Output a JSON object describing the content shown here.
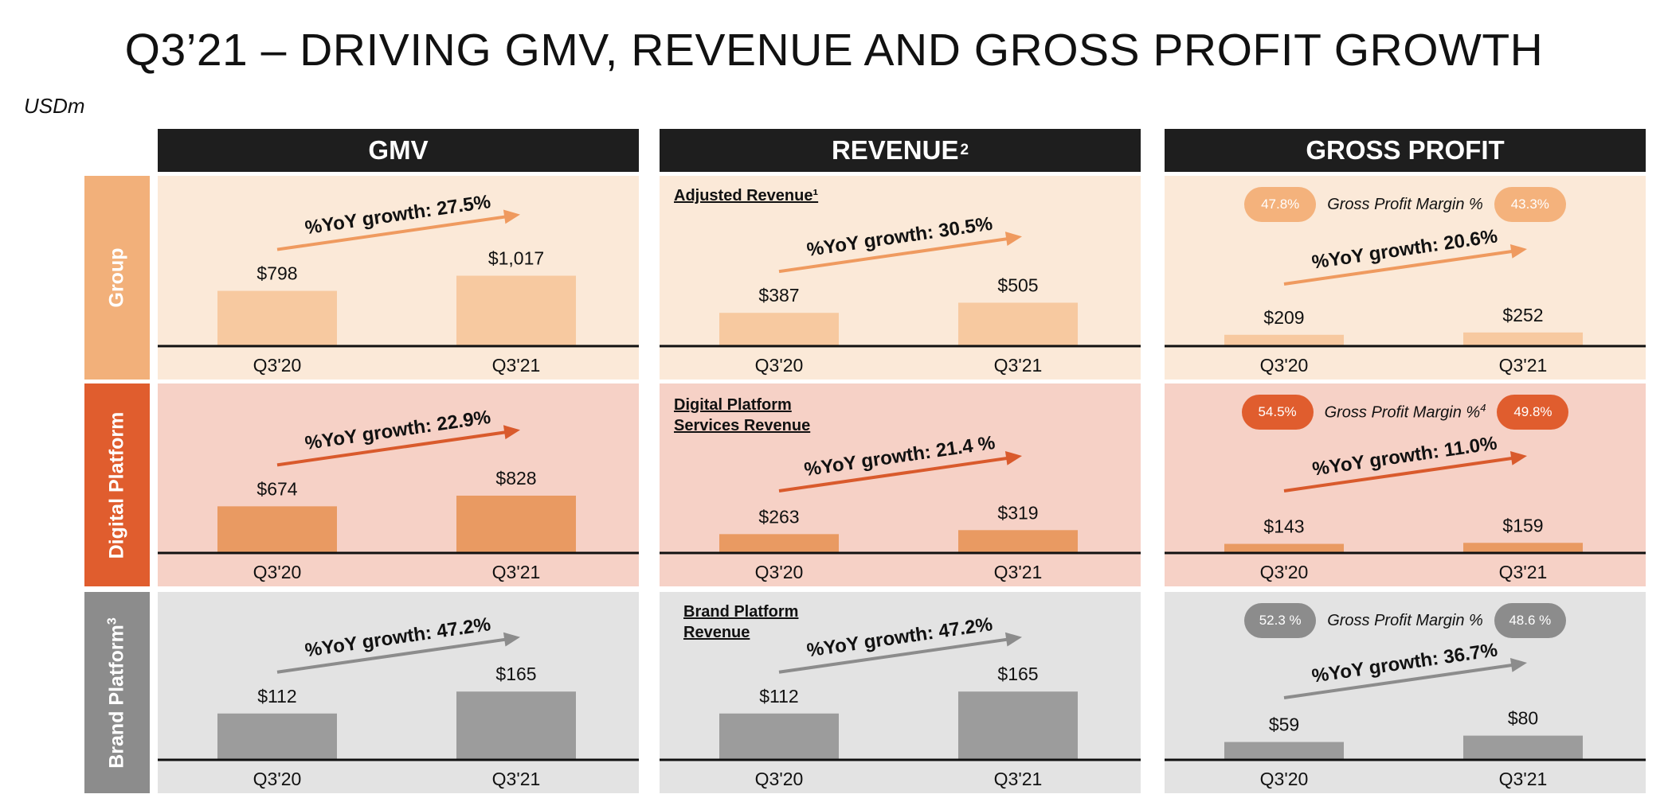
{
  "title": "Q3’21 – DRIVING GMV, REVENUE AND GROSS PROFIT GROWTH",
  "units": "USDm",
  "columns": [
    {
      "label": "GMV",
      "sup": ""
    },
    {
      "label": "REVENUE",
      "sup": "2"
    },
    {
      "label": "GROSS PROFIT",
      "sup": ""
    }
  ],
  "rows": [
    {
      "label": "Group",
      "sup": ""
    },
    {
      "label": "Digital Platform",
      "sup": ""
    },
    {
      "label": "Brand Platform",
      "sup": "3"
    }
  ],
  "captions": {
    "group_revenue": "Adjusted Revenue¹",
    "digital_revenue": "Digital Platform\nServices Revenue",
    "brand_revenue": "Brand Platform\nRevenue"
  },
  "margins": {
    "group": {
      "q320": "47.8%",
      "label": "Gross Profit Margin %",
      "sup": "",
      "q321": "43.3%"
    },
    "digital": {
      "q320": "54.5%",
      "label": "Gross Profit Margin %",
      "sup": "4",
      "q321": "49.8%"
    },
    "brand": {
      "q320": "52.3 %",
      "label": "Gross Profit Margin %",
      "sup": "",
      "q321": "48.6 %"
    }
  },
  "colors": {
    "header_bg": "#1e1e1e",
    "group_label": "#f2b07a",
    "group_panel": "#fbe9d8",
    "group_bar": "#f7c9a0",
    "group_arrow": "#ef9a5f",
    "group_pill": "#f4b27c",
    "digital_label": "#e05d2e",
    "digital_panel": "#f6d1c6",
    "digital_bar": "#e99a62",
    "digital_arrow": "#d95a2c",
    "digital_pill": "#e05d2e",
    "brand_label": "#8c8c8c",
    "brand_panel": "#e3e3e3",
    "brand_bar": "#9c9c9c",
    "brand_arrow": "#8c8c8c",
    "brand_pill": "#8c8c8c"
  },
  "chart_data": [
    {
      "type": "bar",
      "panel": "group-gmv",
      "categories": [
        "Q3'20",
        "Q3'21"
      ],
      "values": [
        798,
        1017
      ],
      "value_labels": [
        "$798",
        "$1,017"
      ],
      "growth_label": "%YoY growth: 27.5%"
    },
    {
      "type": "bar",
      "panel": "group-revenue",
      "categories": [
        "Q3'20",
        "Q3'21"
      ],
      "values": [
        387,
        505
      ],
      "value_labels": [
        "$387",
        "$505"
      ],
      "growth_label": "%YoY growth: 30.5%"
    },
    {
      "type": "bar",
      "panel": "group-gross-profit",
      "categories": [
        "Q3'20",
        "Q3'21"
      ],
      "values": [
        209,
        252
      ],
      "value_labels": [
        "$209",
        "$252"
      ],
      "growth_label": "%YoY growth: 20.6%"
    },
    {
      "type": "bar",
      "panel": "digital-gmv",
      "categories": [
        "Q3'20",
        "Q3'21"
      ],
      "values": [
        674,
        828
      ],
      "value_labels": [
        "$674",
        "$828"
      ],
      "growth_label": "%YoY growth: 22.9%"
    },
    {
      "type": "bar",
      "panel": "digital-revenue",
      "categories": [
        "Q3'20",
        "Q3'21"
      ],
      "values": [
        263,
        319
      ],
      "value_labels": [
        "$263",
        "$319"
      ],
      "growth_label": "%YoY growth: 21.4 %"
    },
    {
      "type": "bar",
      "panel": "digital-gross-profit",
      "categories": [
        "Q3'20",
        "Q3'21"
      ],
      "values": [
        143,
        159
      ],
      "value_labels": [
        "$143",
        "$159"
      ],
      "growth_label": "%YoY growth: 11.0%"
    },
    {
      "type": "bar",
      "panel": "brand-gmv",
      "categories": [
        "Q3'20",
        "Q3'21"
      ],
      "values": [
        112,
        165
      ],
      "value_labels": [
        "$112",
        "$165"
      ],
      "growth_label": "%YoY growth: 47.2%"
    },
    {
      "type": "bar",
      "panel": "brand-revenue",
      "categories": [
        "Q3'20",
        "Q3'21"
      ],
      "values": [
        112,
        165
      ],
      "value_labels": [
        "$112",
        "$165"
      ],
      "growth_label": "%YoY growth: 47.2%"
    },
    {
      "type": "bar",
      "panel": "brand-gross-profit",
      "categories": [
        "Q3'20",
        "Q3'21"
      ],
      "values": [
        59,
        80
      ],
      "value_labels": [
        "$59",
        "$80"
      ],
      "growth_label": "%YoY growth: 36.7%"
    }
  ]
}
